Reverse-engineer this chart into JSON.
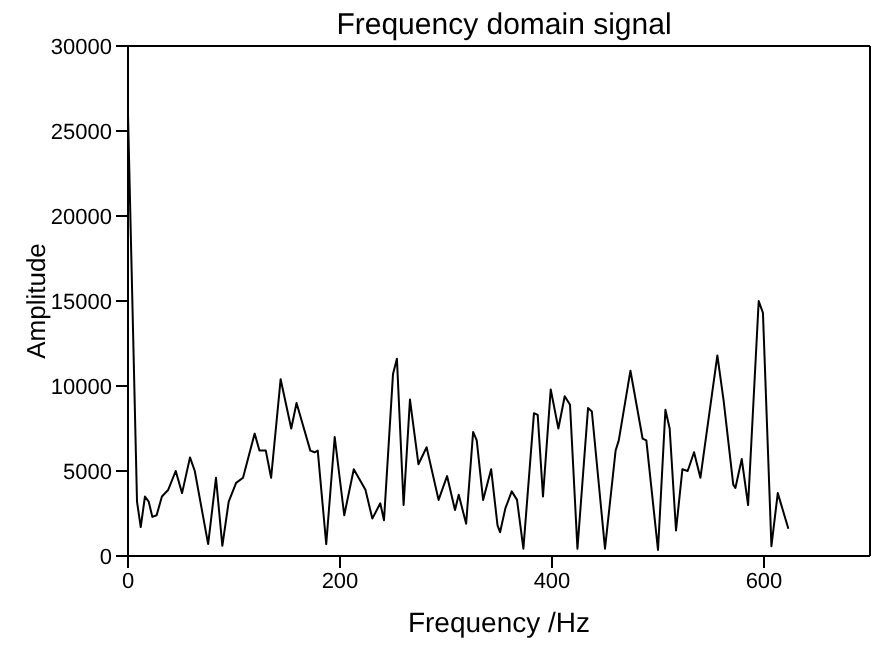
{
  "chart_data": {
    "type": "line",
    "title": "Frequency domain signal",
    "xlabel": "Frequency /Hz",
    "ylabel": "Amplitude",
    "x": [
      0,
      8.5,
      12,
      16,
      19.5,
      23,
      27,
      32,
      38,
      45,
      51,
      58.5,
      63,
      75.6,
      83,
      89,
      95,
      102,
      108.5,
      119.5,
      124,
      130,
      135,
      144,
      154,
      159,
      172,
      176,
      179,
      187,
      195,
      204,
      213,
      224,
      230.5,
      238,
      241.5,
      250,
      253.7,
      260,
      266,
      274,
      281.7,
      293,
      301,
      308.5,
      312,
      319,
      325.6,
      329,
      335,
      342.6,
      348.6,
      351,
      356,
      362,
      367,
      373,
      383,
      386.5,
      391.5,
      398.8,
      406,
      412,
      417,
      424,
      434,
      437.6,
      450,
      460,
      463,
      474,
      485.5,
      489,
      500,
      507,
      511,
      517,
      523,
      528,
      534,
      540,
      556,
      562,
      571,
      573,
      579,
      585,
      595,
      599,
      607,
      613,
      623
    ],
    "series": [
      {
        "color": "#000000",
        "values": [
          26000,
          3200,
          1700,
          3500,
          3200,
          2300,
          2400,
          3500,
          3900,
          5000,
          3700,
          5800,
          5000,
          700,
          4600,
          600,
          3200,
          4300,
          4600,
          7200,
          6200,
          6200,
          4600,
          10400,
          7500,
          9000,
          6200,
          6100,
          6200,
          700,
          7000,
          2400,
          5100,
          3900,
          2200,
          3100,
          2100,
          10700,
          11600,
          3000,
          9200,
          5400,
          6400,
          3300,
          4700,
          2700,
          3600,
          1900,
          7300,
          6800,
          3300,
          5100,
          1800,
          1400,
          2800,
          3800,
          3300,
          430,
          8400,
          8300,
          3500,
          9800,
          7500,
          9400,
          8900,
          430,
          8700,
          8500,
          430,
          6200,
          6800,
          10900,
          6900,
          6800,
          360,
          8600,
          7500,
          1500,
          5100,
          5000,
          6100,
          4600,
          11800,
          9100,
          4200,
          4000,
          5700,
          3000,
          15000,
          14300,
          580,
          3700,
          1600
        ]
      }
    ],
    "xlim": [
      0,
      700
    ],
    "xticks": [
      0,
      200,
      400,
      600
    ],
    "ylim": [
      0,
      30000
    ],
    "yticks": [
      0,
      5000,
      10000,
      15000,
      20000,
      25000,
      30000
    ],
    "grid": false,
    "legend": false,
    "marker": "none",
    "line_style": "solid"
  }
}
